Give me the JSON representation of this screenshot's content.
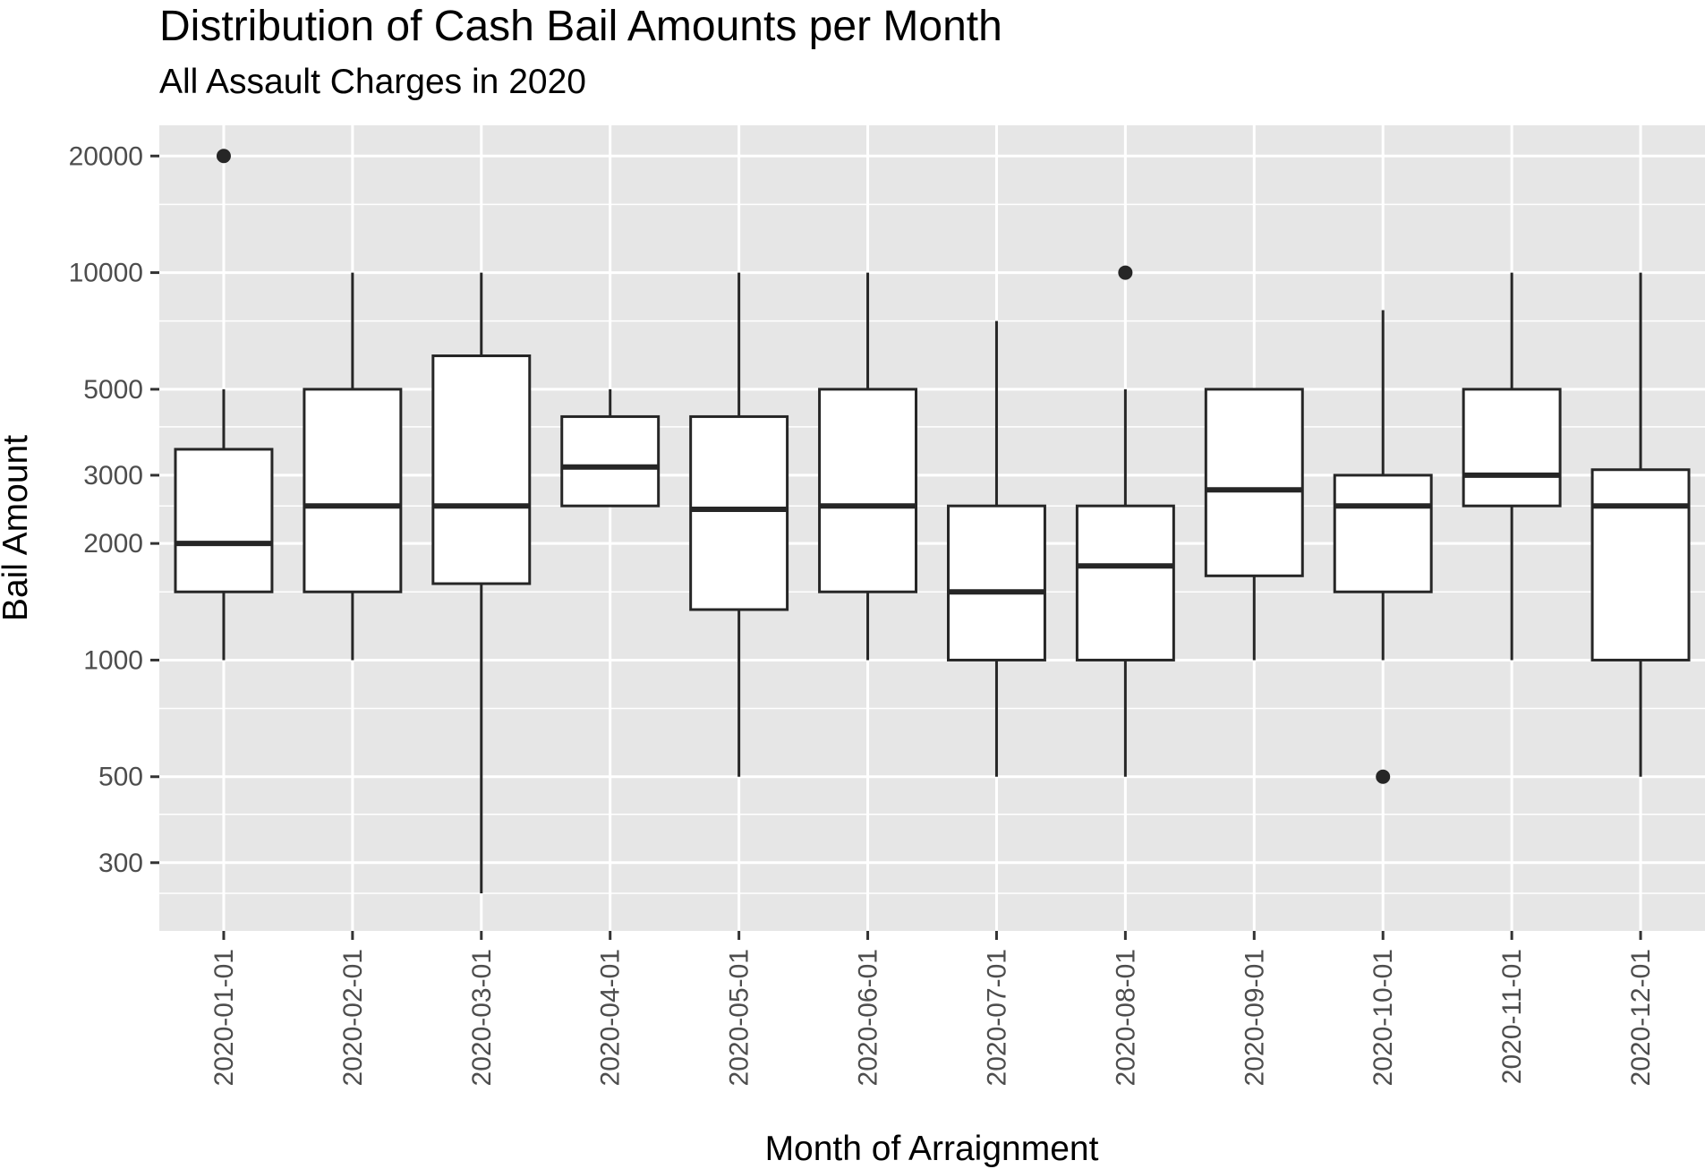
{
  "chart_data": {
    "type": "boxplot",
    "title": "Distribution of Cash Bail Amounts per Month",
    "subtitle": "All Assault Charges in 2020",
    "xlabel": "Month of Arraignment",
    "ylabel": "Bail Amount",
    "y_scale": "log10",
    "ylim": [
      200,
      24000
    ],
    "y_ticks": [
      300,
      500,
      1000,
      2000,
      3000,
      5000,
      10000,
      20000
    ],
    "y_tick_labels": [
      "300",
      "500",
      "1000",
      "2000",
      "3000",
      "5000",
      "10000",
      "20000"
    ],
    "y_minor_ticks": [
      250,
      400,
      750,
      1500,
      2500,
      4000,
      7500,
      15000
    ],
    "grid": true,
    "panel_color": "#e6e6e6",
    "grid_color": "#ffffff",
    "box_fill": "#ffffff",
    "line_color": "#262626",
    "categories": [
      "2020-01-01",
      "2020-02-01",
      "2020-03-01",
      "2020-04-01",
      "2020-05-01",
      "2020-06-01",
      "2020-07-01",
      "2020-08-01",
      "2020-09-01",
      "2020-10-01",
      "2020-11-01",
      "2020-12-01"
    ],
    "boxes": [
      {
        "whisker_low": 1000,
        "q1": 1500,
        "median": 2000,
        "q3": 3500,
        "whisker_high": 5000,
        "outliers": [
          20000
        ]
      },
      {
        "whisker_low": 1000,
        "q1": 1500,
        "median": 2500,
        "q3": 5000,
        "whisker_high": 10000,
        "outliers": []
      },
      {
        "whisker_low": 250,
        "q1": 1575,
        "median": 2500,
        "q3": 6100,
        "whisker_high": 10000,
        "outliers": []
      },
      {
        "whisker_low": 2500,
        "q1": 2500,
        "median": 3150,
        "q3": 4250,
        "whisker_high": 5000,
        "outliers": []
      },
      {
        "whisker_low": 500,
        "q1": 1350,
        "median": 2450,
        "q3": 4250,
        "whisker_high": 10000,
        "outliers": []
      },
      {
        "whisker_low": 1000,
        "q1": 1500,
        "median": 2500,
        "q3": 5000,
        "whisker_high": 10000,
        "outliers": []
      },
      {
        "whisker_low": 500,
        "q1": 1000,
        "median": 1500,
        "q3": 2500,
        "whisker_high": 7500,
        "outliers": []
      },
      {
        "whisker_low": 500,
        "q1": 1000,
        "median": 1750,
        "q3": 2500,
        "whisker_high": 5000,
        "outliers": [
          10000
        ]
      },
      {
        "whisker_low": 1000,
        "q1": 1650,
        "median": 2750,
        "q3": 5000,
        "whisker_high": 5000,
        "outliers": []
      },
      {
        "whisker_low": 1000,
        "q1": 1500,
        "median": 2500,
        "q3": 3000,
        "whisker_high": 8000,
        "outliers": [
          500
        ]
      },
      {
        "whisker_low": 1000,
        "q1": 2500,
        "median": 3000,
        "q3": 5000,
        "whisker_high": 10000,
        "outliers": []
      },
      {
        "whisker_low": 500,
        "q1": 1000,
        "median": 2500,
        "q3": 3100,
        "whisker_high": 10000,
        "outliers": []
      }
    ]
  }
}
